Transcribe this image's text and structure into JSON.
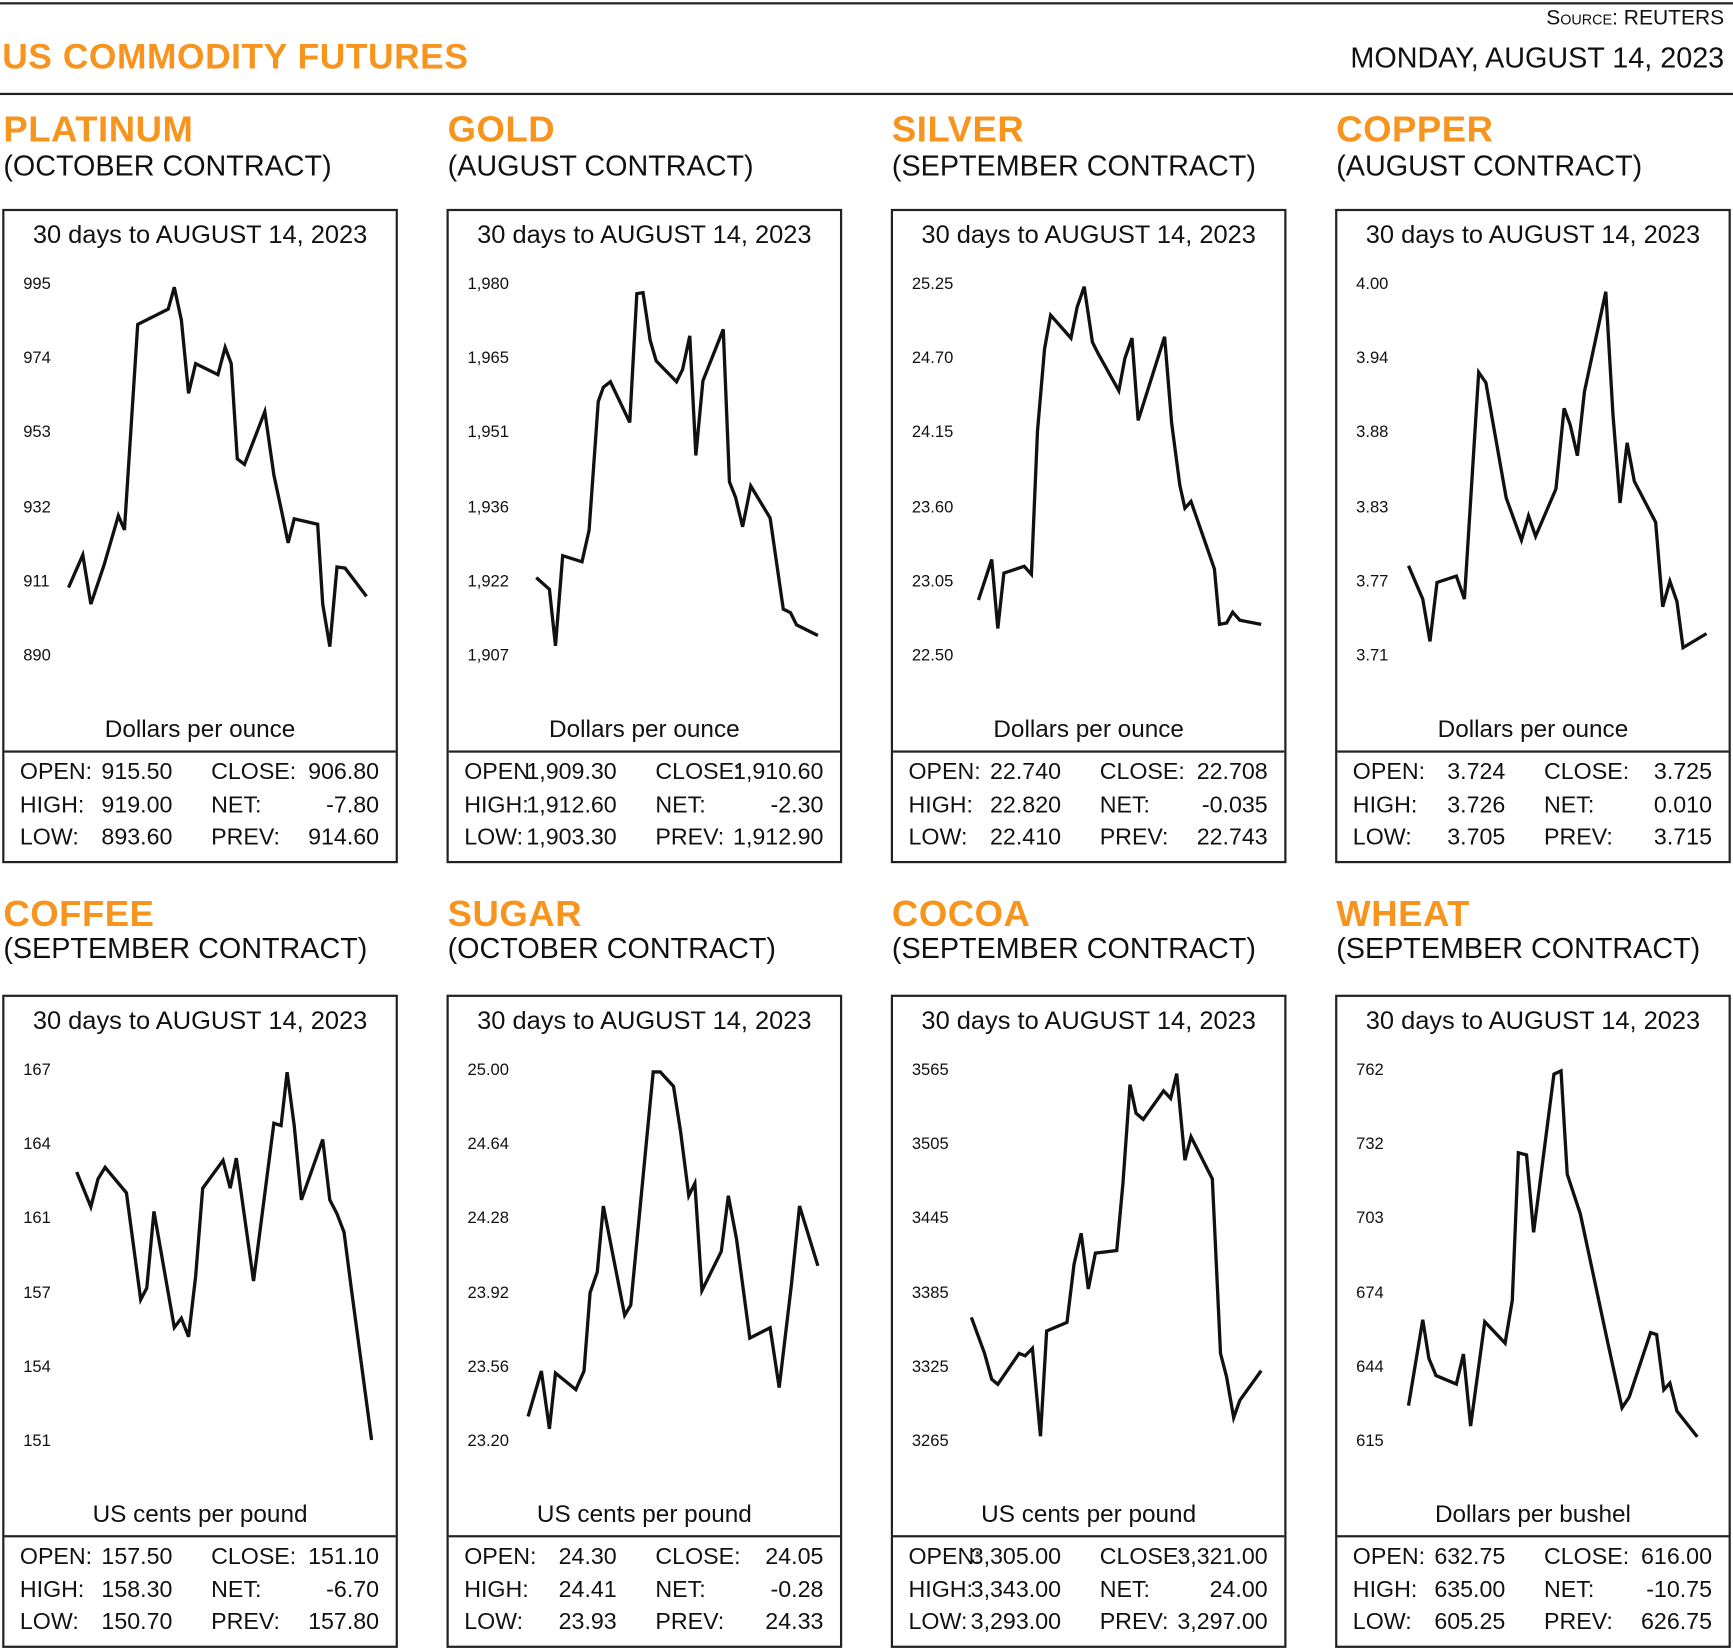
{
  "header": {
    "title": "US COMMODITY FUTURES",
    "source_label": "Source:",
    "source_value": "REUTERS",
    "date": "MONDAY, AUGUST 14, 2023"
  },
  "stat_labels": {
    "open": "OPEN:",
    "high": "HIGH:",
    "low": "LOW:",
    "close": "CLOSE:",
    "net": "NET:",
    "prev": "PREV:"
  },
  "colors": {
    "accent": "#f7941d",
    "line": "#111111"
  },
  "panels": [
    {
      "name": "PLATINUM",
      "contract": "(OCTOBER CONTRACT)",
      "stats": {
        "open": "915.50",
        "high": "919.00",
        "low": "893.60",
        "close": "906.80",
        "net": "-7.80",
        "prev": "914.60"
      }
    },
    {
      "name": "GOLD",
      "contract": "(AUGUST CONTRACT)",
      "stats": {
        "open": "1,909.30",
        "high": "1,912.60",
        "low": "1,903.30",
        "close": "1,910.60",
        "net": "-2.30",
        "prev": "1,912.90"
      }
    },
    {
      "name": "SILVER",
      "contract": "(SEPTEMBER CONTRACT)",
      "stats": {
        "open": "22.740",
        "high": "22.820",
        "low": "22.410",
        "close": "22.708",
        "net": "-0.035",
        "prev": "22.743"
      }
    },
    {
      "name": "COPPER",
      "contract": "(AUGUST CONTRACT)",
      "stats": {
        "open": "3.724",
        "high": "3.726",
        "low": "3.705",
        "close": "3.725",
        "net": "0.010",
        "prev": "3.715"
      }
    },
    {
      "name": "COFFEE",
      "contract": "(SEPTEMBER CONTRACT)",
      "stats": {
        "open": "157.50",
        "high": "158.30",
        "low": "150.70",
        "close": "151.10",
        "net": "-6.70",
        "prev": "157.80"
      }
    },
    {
      "name": "SUGAR",
      "contract": "(OCTOBER CONTRACT)",
      "stats": {
        "open": "24.30",
        "high": "24.41",
        "low": "23.93",
        "close": "24.05",
        "net": "-0.28",
        "prev": "24.33"
      }
    },
    {
      "name": "COCOA",
      "contract": "(SEPTEMBER CONTRACT)",
      "stats": {
        "open": "3,305.00",
        "high": "3,343.00",
        "low": "3,293.00",
        "close": "3,321.00",
        "net": "24.00",
        "prev": "3,297.00"
      }
    },
    {
      "name": "WHEAT",
      "contract": "(SEPTEMBER CONTRACT)",
      "stats": {
        "open": "632.75",
        "high": "635.00",
        "low": "605.25",
        "close": "616.00",
        "net": "-10.75",
        "prev": "626.75"
      }
    }
  ],
  "chart_data": [
    {
      "type": "line",
      "title": "30 days to AUGUST 14, 2023",
      "ylabel": "Dollars per ounce",
      "yticks": [
        "995",
        "974",
        "953",
        "932",
        "911",
        "890"
      ],
      "ylim": [
        890,
        995
      ],
      "xlim": [
        0,
        30
      ],
      "x": [
        0,
        1.4,
        2.2,
        3.5,
        4.9,
        5.5,
        6.8,
        9.8,
        10.4,
        11.1,
        11.8,
        12.5,
        14.7,
        15.4,
        16,
        16.6,
        17.3,
        19.3,
        20.2,
        21,
        21.6,
        22.2,
        24.5,
        25,
        25.7,
        26.4,
        27.2,
        29.3
      ],
      "y": [
        909.2,
        918.4,
        904.5,
        915.6,
        929.5,
        925.5,
        983.6,
        987.9,
        994.1,
        984.8,
        964.1,
        972.5,
        969.4,
        977.1,
        972.5,
        945.6,
        944,
        958.9,
        941,
        930.2,
        921.8,
        928.6,
        927.1,
        904.5,
        892.5,
        915,
        914.7,
        906.7
      ]
    },
    {
      "type": "line",
      "title": "30 days to AUGUST 14, 2023",
      "ylabel": "Dollars per ounce",
      "yticks": [
        "1,980",
        "1,965",
        "1,951",
        "1,936",
        "1,922",
        "1,907"
      ],
      "ylim": [
        1907,
        1980
      ],
      "xlim": [
        0,
        30
      ],
      "x": [
        2.3,
        3.6,
        4.2,
        4.9,
        6.8,
        7.5,
        8.4,
        8.9,
        9.6,
        11.5,
        12.2,
        12.8,
        13.5,
        14.1,
        16.1,
        16.7,
        17.4,
        18,
        18.7,
        20.7,
        21.3,
        21.9,
        22.6,
        23.4,
        25.3,
        26.6,
        27.3,
        27.9,
        30
      ],
      "y": [
        1922.3,
        1920,
        1908.9,
        1926.6,
        1925.4,
        1931.6,
        1956.9,
        1959.7,
        1960.8,
        1952.8,
        1978.1,
        1978.3,
        1969,
        1964.9,
        1960.8,
        1963.2,
        1969.8,
        1946.3,
        1961,
        1971.1,
        1941.1,
        1938.1,
        1932.3,
        1940.3,
        1934,
        1916.1,
        1915.4,
        1913,
        1910.9
      ]
    },
    {
      "type": "line",
      "title": "30 days to AUGUST 14, 2023",
      "ylabel": "Dollars per ounce",
      "yticks": [
        "25.25",
        "24.70",
        "24.15",
        "23.60",
        "23.05",
        "22.50"
      ],
      "ylim": [
        22.5,
        25.25
      ],
      "xlim": [
        0,
        30
      ],
      "x": [
        2.1,
        3.4,
        4,
        4.6,
        6.6,
        7.3,
        7.9,
        8.6,
        9.2,
        11.2,
        11.8,
        12.5,
        13.3,
        13.9,
        15.9,
        16.5,
        17.2,
        17.8,
        20.4,
        21.1,
        21.9,
        22.4,
        23,
        25.3,
        25.8,
        26.5,
        27.1,
        27.8,
        29.9
      ],
      "y": [
        22.91,
        23.21,
        22.7,
        23.11,
        23.16,
        23.1,
        24.16,
        24.77,
        25.02,
        24.85,
        25.08,
        25.23,
        24.82,
        24.73,
        24.46,
        24.7,
        24.85,
        24.24,
        24.86,
        24.22,
        23.76,
        23.59,
        23.64,
        23.14,
        22.73,
        22.74,
        22.82,
        22.76,
        22.73
      ]
    },
    {
      "type": "line",
      "title": "30 days to AUGUST 14, 2023",
      "ylabel": "Dollars per ounce",
      "yticks": [
        "4.00",
        "3.94",
        "3.88",
        "3.83",
        "3.77",
        "3.71"
      ],
      "ylim": [
        3.71,
        4.0
      ],
      "xlim": [
        0,
        30
      ],
      "x": [
        0.7,
        2.1,
        2.8,
        3.5,
        5.4,
        6.2,
        7.6,
        8.3,
        10.3,
        11.8,
        12.5,
        13.2,
        15.2,
        16,
        16.6,
        17.3,
        18,
        20.1,
        20.8,
        21.5,
        22.2,
        22.9,
        25,
        25.7,
        26.4,
        27.1,
        27.7,
        30
      ],
      "y": [
        3.78,
        3.754,
        3.721,
        3.767,
        3.772,
        3.754,
        3.931,
        3.923,
        3.833,
        3.8,
        3.819,
        3.803,
        3.84,
        3.903,
        3.89,
        3.866,
        3.916,
        3.994,
        3.898,
        3.829,
        3.876,
        3.846,
        3.814,
        3.748,
        3.768,
        3.752,
        3.716,
        3.727
      ]
    },
    {
      "type": "line",
      "title": "30 days to AUGUST 14, 2023",
      "ylabel": "US cents per pound",
      "yticks": [
        "167",
        "164",
        "161",
        "157",
        "154",
        "151"
      ],
      "ylim": [
        151,
        167
      ],
      "xlim": [
        0,
        30
      ],
      "x": [
        0.8,
        2.2,
        2.9,
        3.6,
        5.7,
        7.1,
        7.7,
        8.4,
        10.4,
        11.1,
        11.8,
        12.5,
        13.2,
        15.2,
        15.9,
        16.5,
        18.2,
        20.2,
        20.9,
        21.5,
        22.2,
        22.9,
        25,
        25.7,
        26.4,
        27.1,
        27.8,
        29.8
      ],
      "y": [
        162.6,
        161.1,
        162.3,
        162.8,
        161.7,
        157.1,
        157.6,
        160.9,
        155.9,
        156.3,
        155.5,
        158.1,
        161.9,
        163.1,
        161.9,
        163.2,
        157.9,
        164.7,
        164.6,
        166.9,
        164.6,
        161.4,
        164,
        161.4,
        160.8,
        160,
        157.6,
        151.05
      ]
    },
    {
      "type": "line",
      "title": "30 days to AUGUST 14, 2023",
      "ylabel": "US cents per pound",
      "yticks": [
        "25.00",
        "24.64",
        "24.28",
        "23.92",
        "23.56",
        "23.20"
      ],
      "ylim": [
        23.2,
        25.0
      ],
      "xlim": [
        0,
        30
      ],
      "x": [
        1.5,
        2.8,
        3.6,
        4.2,
        6.2,
        7,
        7.6,
        8.3,
        8.9,
        11,
        11.6,
        13.2,
        13.8,
        14.5,
        15.8,
        16.5,
        17.3,
        17.9,
        18.6,
        20.5,
        21.2,
        22,
        23.3,
        25.3,
        26.2,
        27.4,
        28.2,
        30
      ],
      "y": [
        23.32,
        23.54,
        23.26,
        23.53,
        23.45,
        23.54,
        23.92,
        24.02,
        24.34,
        23.81,
        23.86,
        24.68,
        24.99,
        24.99,
        24.92,
        24.7,
        24.39,
        24.45,
        23.93,
        24.12,
        24.39,
        24.18,
        23.7,
        23.75,
        23.46,
        23.96,
        24.34,
        24.05
      ]
    },
    {
      "type": "line",
      "title": "30 days to AUGUST 14, 2023",
      "ylabel": "US cents per pound",
      "yticks": [
        "3565",
        "3505",
        "3445",
        "3385",
        "3325",
        "3265"
      ],
      "ylim": [
        3265,
        3565
      ],
      "xlim": [
        0,
        30
      ],
      "x": [
        1.4,
        2.7,
        3.4,
        4,
        6.1,
        6.7,
        7.4,
        8.2,
        8.8,
        10.8,
        11.5,
        12.2,
        12.9,
        13.6,
        15.7,
        16.3,
        17,
        17.6,
        18.3,
        20.3,
        21,
        21.6,
        22.4,
        23,
        25.1,
        25.9,
        26.5,
        27.2,
        27.8,
        29.9
      ],
      "y": [
        3365,
        3336,
        3315,
        3311,
        3336,
        3334,
        3340,
        3269,
        3354,
        3361,
        3408,
        3433,
        3388,
        3417,
        3419,
        3473,
        3553,
        3530,
        3525,
        3548,
        3542,
        3562,
        3492,
        3511,
        3477,
        3336,
        3317,
        3284,
        3298,
        3322
      ]
    },
    {
      "type": "line",
      "title": "30 days to AUGUST 14, 2023",
      "ylabel": "Dollars per bushel",
      "yticks": [
        "762",
        "732",
        "703",
        "674",
        "644",
        "615"
      ],
      "ylim": [
        615,
        762
      ],
      "xlim": [
        0,
        30
      ],
      "x": [
        0.7,
        2.1,
        2.7,
        3.4,
        5.4,
        6.1,
        6.8,
        8.2,
        10.2,
        10.9,
        11.5,
        12.3,
        13,
        15,
        15.7,
        16.3,
        17.6,
        20.3,
        21.7,
        22.4,
        24.5,
        25.1,
        25.8,
        26.4,
        27.1,
        29.1
      ],
      "y": [
        629.1,
        663.1,
        647.8,
        641,
        637.6,
        649.5,
        621,
        662.3,
        653.8,
        670.8,
        729.2,
        728.3,
        697.7,
        760.3,
        761.6,
        720.7,
        704.9,
        653.8,
        628.2,
        632.5,
        658,
        657.2,
        635.4,
        638,
        626.9,
        616.7
      ]
    }
  ]
}
